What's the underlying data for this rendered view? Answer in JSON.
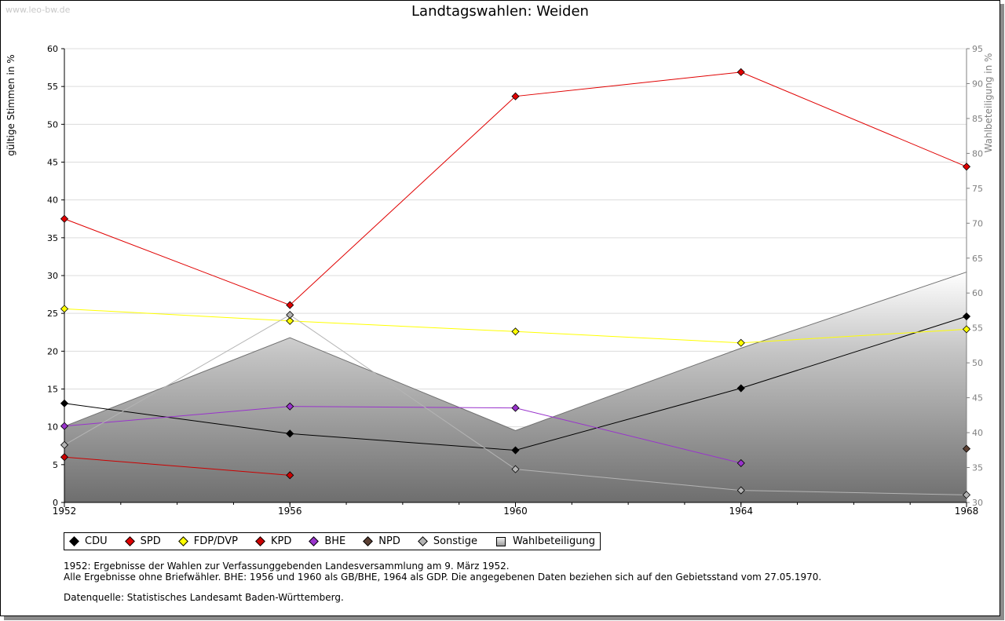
{
  "watermark": "www.leo-bw.de",
  "chart_data": {
    "type": "line",
    "title": "Landtagswahlen: Weiden",
    "ylabel": "gültige Stimmen in %",
    "y2label": "Wahlbeteiligung in %",
    "x": [
      1952,
      1956,
      1960,
      1964,
      1968
    ],
    "xlim": [
      1952,
      1968
    ],
    "ylim": [
      0,
      60
    ],
    "y2lim": [
      30,
      95
    ],
    "yticks": [
      0,
      5,
      10,
      15,
      20,
      25,
      30,
      35,
      40,
      45,
      50,
      55,
      60
    ],
    "y2ticks": [
      30,
      35,
      40,
      45,
      50,
      55,
      60,
      65,
      70,
      75,
      80,
      85,
      90,
      95
    ],
    "grid": true,
    "legend_position": "bottom",
    "series": [
      {
        "name": "CDU",
        "color": "#000000",
        "values": [
          13.1,
          9.1,
          6.9,
          15.1,
          24.6
        ]
      },
      {
        "name": "SPD",
        "color": "#e00000",
        "values": [
          37.5,
          26.1,
          53.7,
          56.9,
          44.4
        ]
      },
      {
        "name": "FDP/DVP",
        "color": "#ffff00",
        "values": [
          25.6,
          24.0,
          22.6,
          21.1,
          22.9
        ]
      },
      {
        "name": "KPD",
        "color": "#cc0000",
        "values": [
          6.0,
          3.6,
          null,
          null,
          null
        ]
      },
      {
        "name": "BHE",
        "color": "#9933cc",
        "values": [
          10.1,
          12.7,
          12.5,
          5.2,
          null
        ]
      },
      {
        "name": "NPD",
        "color": "#5c4033",
        "values": [
          null,
          null,
          null,
          null,
          7.1
        ]
      },
      {
        "name": "Sonstige",
        "color": "#b4b4b4",
        "values": [
          7.6,
          24.8,
          4.4,
          1.6,
          1.0
        ]
      },
      {
        "name": "Wahlbeteiligung",
        "color": "#8c8c8c",
        "type": "area",
        "axis": "right",
        "values": [
          40.9,
          53.6,
          40.3,
          52.1,
          63.0
        ]
      }
    ]
  },
  "notes": {
    "line1": "1952: Ergebnisse der Wahlen zur Verfassunggebenden Landesversammlung am 9. März 1952.",
    "line2": "Alle Ergebnisse ohne Briefwähler. BHE: 1956 und 1960 als GB/BHE, 1964 als GDP. Die angegebenen Daten beziehen sich auf den Gebietsstand vom 27.05.1970.",
    "source": "Datenquelle: Statistisches Landesamt Baden-Württemberg."
  }
}
